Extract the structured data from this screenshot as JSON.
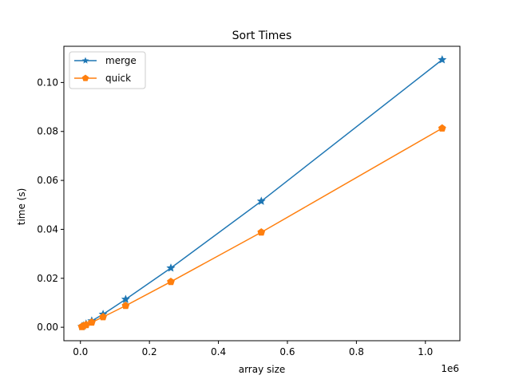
{
  "chart_data": {
    "type": "line",
    "title": "Sort Times",
    "xlabel": "array size",
    "ylabel": "time (s)",
    "x_offset_label": "1e6",
    "x": [
      4096,
      8192,
      16384,
      32768,
      65536,
      131072,
      262144,
      524288,
      1048576
    ],
    "series": [
      {
        "name": "merge",
        "color": "#1f77b4",
        "marker": "star",
        "values": [
          0.0003,
          0.0006,
          0.0013,
          0.0026,
          0.0053,
          0.0114,
          0.0242,
          0.0515,
          0.1093
        ]
      },
      {
        "name": "quick",
        "color": "#ff7f0e",
        "marker": "pentagon",
        "values": [
          0.0002,
          0.0005,
          0.001,
          0.002,
          0.0042,
          0.0088,
          0.0186,
          0.0388,
          0.0813
        ]
      }
    ],
    "xlim": [
      -48000,
      1100000
    ],
    "ylim": [
      -0.0055,
      0.1148
    ],
    "xticks": [
      0,
      200000,
      400000,
      600000,
      800000,
      1000000
    ],
    "xtick_labels": [
      "0.0",
      "0.2",
      "0.4",
      "0.6",
      "0.8",
      "1.0"
    ],
    "yticks": [
      0,
      0.02,
      0.04,
      0.06,
      0.08,
      0.1
    ],
    "ytick_labels": [
      "0.00",
      "0.02",
      "0.04",
      "0.06",
      "0.08",
      "0.10"
    ],
    "grid": false,
    "legend": "top-left"
  }
}
